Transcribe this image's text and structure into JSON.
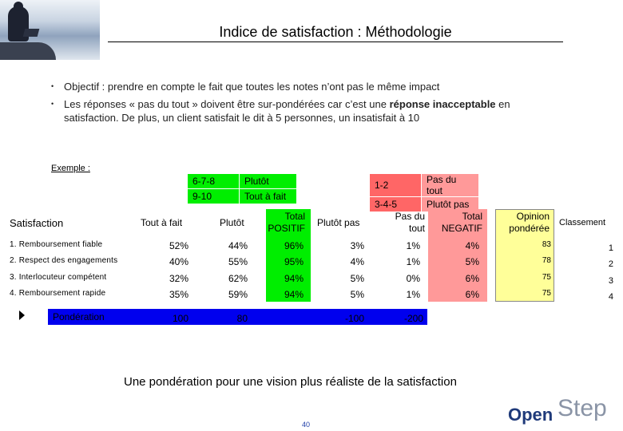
{
  "title": "Indice de satisfaction : Méthodologie",
  "bullets": [
    {
      "text": "Objectif : prendre en compte le fait que toutes les notes n’ont pas le même impact"
    },
    {
      "text_before": "Les réponses « pas du tout » doivent être sur-pondérées car c’est une ",
      "bold": "réponse inacceptable",
      "text_after": " en satisfaction. De plus, un client satisfait le dit à 5 personnes, un insatisfait à 10"
    }
  ],
  "exemple_label": "Exemple :",
  "legend_positive": [
    {
      "score": "6-7-8",
      "label": "Plutôt"
    },
    {
      "score": "9-10",
      "label": "Tout à fait"
    }
  ],
  "legend_negative": [
    {
      "score": "1-2",
      "label": "Pas du tout"
    },
    {
      "score": "3-4-5",
      "label": "Plutôt pas"
    }
  ],
  "table": {
    "headers": {
      "satisfaction": "Satisfaction",
      "tout_a_fait": "Tout à fait",
      "plutot": "Plutôt",
      "total_positif_1": "Total",
      "total_positif_2": "POSITIF",
      "plutot_pas": "Plutôt pas",
      "pas_du_tout_1": "Pas du",
      "pas_du_tout_2": "tout",
      "total_negatif_1": "Total",
      "total_negatif_2": "NEGATIF",
      "opinion_1": "Opinion",
      "opinion_2": "pondérée",
      "classement": "Classement"
    },
    "rows": [
      {
        "label": "1. Remboursement fiable",
        "tout": "52%",
        "plutot": "44%",
        "tpos": "96%",
        "ppas": "3%",
        "pdt": "1%",
        "tneg": "4%",
        "opinion": "83",
        "rank": "1"
      },
      {
        "label": "2. Respect des engagements",
        "tout": "40%",
        "plutot": "55%",
        "tpos": "95%",
        "ppas": "4%",
        "pdt": "1%",
        "tneg": "5%",
        "opinion": "78",
        "rank": "2"
      },
      {
        "label": "3. Interlocuteur compétent",
        "tout": "32%",
        "plutot": "62%",
        "tpos": "94%",
        "ppas": "5%",
        "pdt": "0%",
        "tneg": "6%",
        "opinion": "75",
        "rank": "3"
      },
      {
        "label": "4. Remboursement rapide",
        "tout": "35%",
        "plutot": "59%",
        "tpos": "94%",
        "ppas": "5%",
        "pdt": "1%",
        "tneg": "6%",
        "opinion": "75",
        "rank": "4"
      }
    ],
    "ponderation": {
      "label": "Pondération",
      "tout": "100",
      "plutot": "80",
      "ppas": "-100",
      "pdt": "-200"
    }
  },
  "conclusion": "Une pondération pour une vision plus réaliste de la satisfaction",
  "page_number": "40",
  "logo": {
    "part1": "Open",
    "part2": "Step"
  },
  "colors": {
    "positive": "#00ee00",
    "negative": "#ff9999",
    "opinion": "#ffff99",
    "ponderation": "#0000ee",
    "legend_pos": "#00ee00",
    "legend_neg": "#ff6666"
  }
}
